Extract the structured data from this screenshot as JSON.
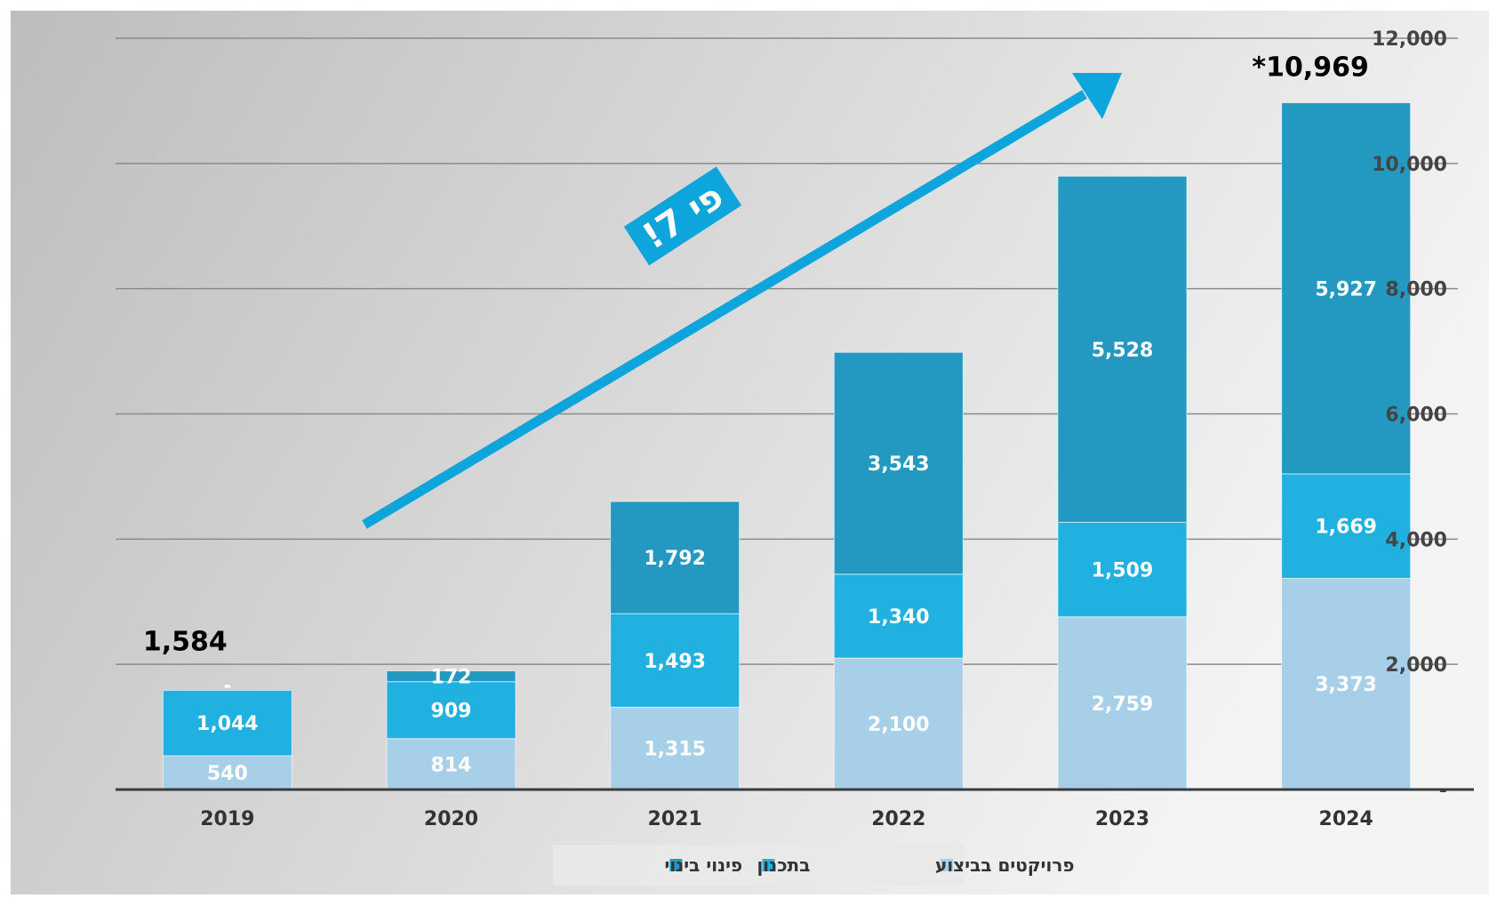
{
  "chart_data": {
    "type": "bar",
    "stacked": true,
    "categories": [
      "2019",
      "2020",
      "2021",
      "2022",
      "2023",
      "2024"
    ],
    "series": [
      {
        "name": "פרויקטים בביצוע",
        "color": "#a8cfe8",
        "values": [
          540,
          814,
          1315,
          2100,
          2759,
          3373
        ]
      },
      {
        "name": "בתכנון",
        "color": "#20b1e1",
        "values": [
          1044,
          909,
          1493,
          1340,
          1509,
          1669
        ]
      },
      {
        "name": "פינוי בינוי",
        "color": "#2399c1",
        "values": [
          0,
          172,
          1792,
          3543,
          5528,
          5927
        ]
      }
    ],
    "segment_labels": [
      [
        "540",
        "814",
        "1,315",
        "2,100",
        "2,759",
        "3,373"
      ],
      [
        "1,044",
        "909",
        "1,493",
        "1,340",
        "1,509",
        "1,669"
      ],
      [
        "-",
        "172",
        "1,792",
        "3,543",
        "5,528",
        "5,927"
      ]
    ],
    "totals_labels": [
      {
        "category": "2019",
        "text": "1,584"
      },
      {
        "category": "2024",
        "text": "*10,969"
      }
    ],
    "y_ticks": [
      "-",
      "2,000",
      "4,000",
      "6,000",
      "8,000",
      "10,000",
      "12,000"
    ],
    "ylim": [
      0,
      12000
    ],
    "y_axis_side": "right",
    "grid": true,
    "legend_position": "bottom",
    "annotation": {
      "text": "פי 7!",
      "color": "#0ea5dc"
    },
    "background": [
      "#bdbdbd",
      "#f4f4f4"
    ]
  }
}
